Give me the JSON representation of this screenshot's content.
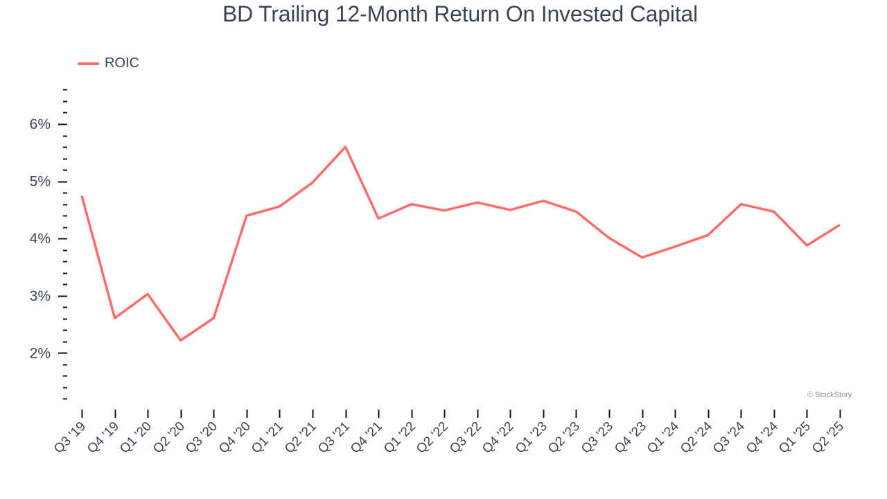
{
  "chart_data": {
    "type": "line",
    "title": "BD Trailing 12-Month Return On Invested Capital",
    "xlabel": "",
    "ylabel": "",
    "ylim": [
      1.1,
      6.65
    ],
    "y_ticks": [
      "2%",
      "3%",
      "4%",
      "5%",
      "6%"
    ],
    "y_tick_values": [
      2,
      3,
      4,
      5,
      6
    ],
    "grid": false,
    "legend_position": "top-left",
    "categories": [
      "Q3 '19",
      "Q4 '19",
      "Q1 '20",
      "Q2 '20",
      "Q3 '20",
      "Q4 '20",
      "Q1 '21",
      "Q2 '21",
      "Q3 '21",
      "Q4 '21",
      "Q1 '22",
      "Q2 '22",
      "Q3 '22",
      "Q4 '22",
      "Q1 '23",
      "Q2 '23",
      "Q3 '23",
      "Q4 '23",
      "Q1 '24",
      "Q2 '24",
      "Q3 '24",
      "Q4 '24",
      "Q1 '25",
      "Q2 '25"
    ],
    "series": [
      {
        "name": "ROIC",
        "color": "#ff6b6b",
        "values": [
          4.75,
          2.61,
          3.03,
          2.22,
          2.61,
          4.4,
          4.56,
          4.98,
          5.6,
          4.35,
          4.6,
          4.49,
          4.63,
          4.5,
          4.66,
          4.47,
          4.01,
          3.67,
          3.86,
          4.06,
          4.6,
          4.47,
          3.88,
          4.24
        ]
      }
    ]
  },
  "header": {
    "title": "BD Trailing 12-Month Return On Invested Capital"
  },
  "legend": {
    "label": "ROIC",
    "color": "#ff6b6b"
  },
  "watermark": "© StockStory"
}
